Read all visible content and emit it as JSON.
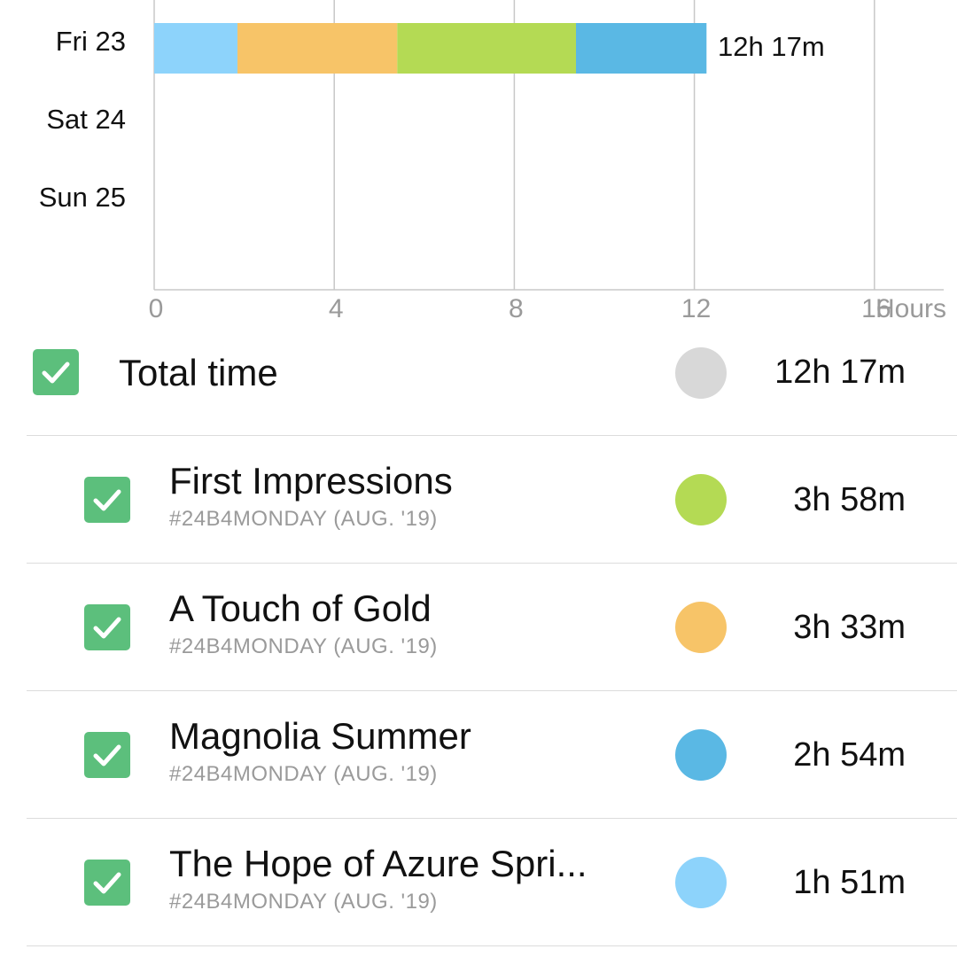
{
  "chart_data": {
    "type": "bar",
    "orientation": "horizontal",
    "stacked": true,
    "categories": [
      "Fri 23",
      "Sat 24",
      "Sun 25"
    ],
    "x_ticks": [
      "0",
      "4",
      "8",
      "12",
      "16"
    ],
    "x_unit_label": "Hours",
    "xlim": [
      0,
      16
    ],
    "grid": true,
    "bar_total_labels": [
      "12h 17m",
      "",
      ""
    ],
    "series": [
      {
        "name": "The Hope of Azure Spri...",
        "color": "#8dd3fb",
        "values": [
          1.85,
          0,
          0
        ]
      },
      {
        "name": "A Touch of Gold",
        "color": "#f7c468",
        "values": [
          3.55,
          0,
          0
        ]
      },
      {
        "name": "First Impressions",
        "color": "#b4da54",
        "values": [
          3.97,
          0,
          0
        ]
      },
      {
        "name": "Magnolia Summer",
        "color": "#5ab8e4",
        "values": [
          2.9,
          0,
          0
        ]
      }
    ]
  },
  "list": {
    "total": {
      "label": "Total time",
      "duration": "12h 17m",
      "color": "#d8d8d8",
      "checked": true
    },
    "items": [
      {
        "title": "First Impressions",
        "subtitle": "#24B4MONDAY (AUG. '19)",
        "duration": "3h 58m",
        "color": "#b4da54",
        "checked": true
      },
      {
        "title": "A Touch of Gold",
        "subtitle": "#24B4MONDAY (AUG. '19)",
        "duration": "3h 33m",
        "color": "#f7c468",
        "checked": true
      },
      {
        "title": "Magnolia Summer",
        "subtitle": "#24B4MONDAY (AUG. '19)",
        "duration": "2h 54m",
        "color": "#5ab8e4",
        "checked": true
      },
      {
        "title": "The Hope of Azure Spri...",
        "subtitle": "#24B4MONDAY (AUG. '19)",
        "duration": "1h 51m",
        "color": "#8dd3fb",
        "checked": true
      }
    ]
  }
}
